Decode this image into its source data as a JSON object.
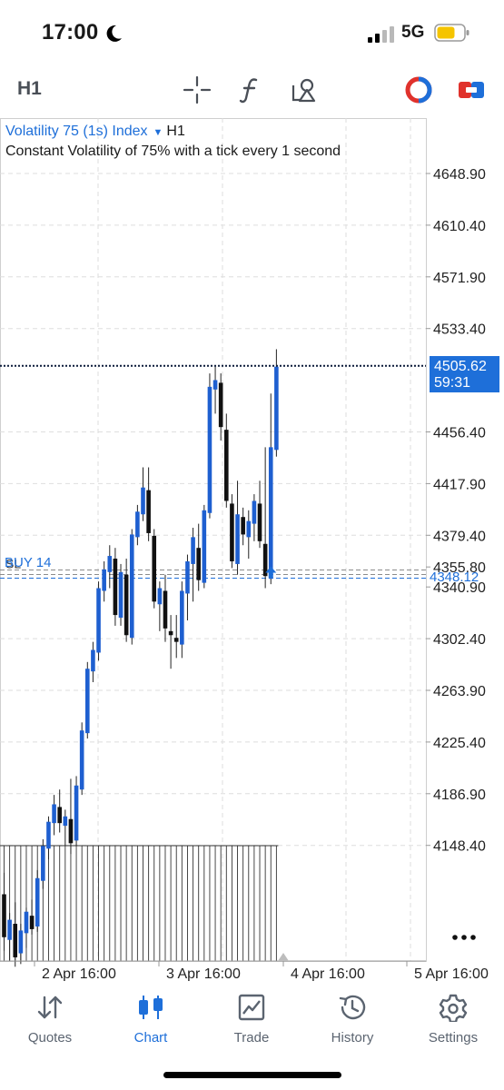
{
  "status_bar": {
    "time": "17:00",
    "network": "5G",
    "battery_color": "#f5c400"
  },
  "toolbar": {
    "timeframe": "H1",
    "icons": [
      "crosshair-icon",
      "indicators-icon",
      "objects-icon",
      "one-click-trading-icon",
      "trade-icon"
    ]
  },
  "chart": {
    "symbol": "Volatility 75 (1s) Index",
    "timeframe": "H1",
    "description": "Constant Volatility of 75% with a tick every 1 second",
    "current_price": "4505.62",
    "countdown": "59:31",
    "order_label": "BUY 14",
    "order_price": "4348.12",
    "sl_label": "SL",
    "accent_color": "#1e6fd9",
    "bull_color": "#1e5fd0",
    "bear_color": "#111111"
  },
  "chart_data": {
    "type": "candlestick",
    "price_levels": [
      "4648.90",
      "4610.40",
      "4571.90",
      "4533.40",
      "4456.40",
      "4417.90",
      "4379.40",
      "4355.80",
      "4340.90",
      "4302.40",
      "4263.90",
      "4225.40",
      "4186.90",
      "4148.40"
    ],
    "x_labels": [
      "2 Apr 16:00",
      "3 Apr 16:00",
      "4 Apr 16:00",
      "5 Apr 16:00"
    ],
    "current_price": 4505.62,
    "entry_price": 4348.12,
    "candles": [
      {
        "o": 4112,
        "h": 4128,
        "l": 4070,
        "c": 4080
      },
      {
        "o": 4078,
        "h": 4098,
        "l": 4062,
        "c": 4093
      },
      {
        "o": 4090,
        "h": 4106,
        "l": 4058,
        "c": 4065
      },
      {
        "o": 4068,
        "h": 4090,
        "l": 4060,
        "c": 4085
      },
      {
        "o": 4083,
        "h": 4102,
        "l": 4072,
        "c": 4099
      },
      {
        "o": 4096,
        "h": 4108,
        "l": 4082,
        "c": 4086
      },
      {
        "o": 4088,
        "h": 4130,
        "l": 4084,
        "c": 4124
      },
      {
        "o": 4122,
        "h": 4153,
        "l": 4116,
        "c": 4148
      },
      {
        "o": 4146,
        "h": 4170,
        "l": 4138,
        "c": 4166
      },
      {
        "o": 4165,
        "h": 4186,
        "l": 4156,
        "c": 4179
      },
      {
        "o": 4177,
        "h": 4190,
        "l": 4158,
        "c": 4165
      },
      {
        "o": 4163,
        "h": 4175,
        "l": 4148,
        "c": 4170
      },
      {
        "o": 4168,
        "h": 4198,
        "l": 4142,
        "c": 4150
      },
      {
        "o": 4152,
        "h": 4200,
        "l": 4148,
        "c": 4193
      },
      {
        "o": 4190,
        "h": 4240,
        "l": 4186,
        "c": 4234
      },
      {
        "o": 4232,
        "h": 4285,
        "l": 4228,
        "c": 4280
      },
      {
        "o": 4278,
        "h": 4300,
        "l": 4270,
        "c": 4294
      },
      {
        "o": 4292,
        "h": 4345,
        "l": 4286,
        "c": 4340
      },
      {
        "o": 4338,
        "h": 4360,
        "l": 4330,
        "c": 4354
      },
      {
        "o": 4352,
        "h": 4372,
        "l": 4340,
        "c": 4364
      },
      {
        "o": 4362,
        "h": 4370,
        "l": 4312,
        "c": 4320
      },
      {
        "o": 4318,
        "h": 4358,
        "l": 4312,
        "c": 4352
      },
      {
        "o": 4350,
        "h": 4362,
        "l": 4300,
        "c": 4305
      },
      {
        "o": 4303,
        "h": 4384,
        "l": 4298,
        "c": 4380
      },
      {
        "o": 4378,
        "h": 4402,
        "l": 4372,
        "c": 4397
      },
      {
        "o": 4395,
        "h": 4430,
        "l": 4390,
        "c": 4415
      },
      {
        "o": 4413,
        "h": 4430,
        "l": 4375,
        "c": 4381
      },
      {
        "o": 4379,
        "h": 4384,
        "l": 4325,
        "c": 4330
      },
      {
        "o": 4328,
        "h": 4345,
        "l": 4308,
        "c": 4340
      },
      {
        "o": 4338,
        "h": 4350,
        "l": 4300,
        "c": 4310
      },
      {
        "o": 4308,
        "h": 4320,
        "l": 4280,
        "c": 4305
      },
      {
        "o": 4303,
        "h": 4320,
        "l": 4288,
        "c": 4300
      },
      {
        "o": 4298,
        "h": 4345,
        "l": 4288,
        "c": 4338
      },
      {
        "o": 4336,
        "h": 4365,
        "l": 4316,
        "c": 4360
      },
      {
        "o": 4358,
        "h": 4385,
        "l": 4330,
        "c": 4378
      },
      {
        "o": 4370,
        "h": 4388,
        "l": 4338,
        "c": 4346
      },
      {
        "o": 4344,
        "h": 4402,
        "l": 4340,
        "c": 4398
      },
      {
        "o": 4396,
        "h": 4500,
        "l": 4392,
        "c": 4490
      },
      {
        "o": 4488,
        "h": 4505,
        "l": 4470,
        "c": 4495
      },
      {
        "o": 4493,
        "h": 4500,
        "l": 4450,
        "c": 4460
      },
      {
        "o": 4458,
        "h": 4470,
        "l": 4400,
        "c": 4405
      },
      {
        "o": 4403,
        "h": 4410,
        "l": 4355,
        "c": 4360
      },
      {
        "o": 4358,
        "h": 4420,
        "l": 4350,
        "c": 4395
      },
      {
        "o": 4393,
        "h": 4400,
        "l": 4372,
        "c": 4380
      },
      {
        "o": 4378,
        "h": 4398,
        "l": 4362,
        "c": 4390
      },
      {
        "o": 4388,
        "h": 4410,
        "l": 4375,
        "c": 4405
      },
      {
        "o": 4403,
        "h": 4420,
        "l": 4370,
        "c": 4375
      },
      {
        "o": 4373,
        "h": 4445,
        "l": 4340,
        "c": 4349
      },
      {
        "o": 4347,
        "h": 4485,
        "l": 4343,
        "c": 4445
      },
      {
        "o": 4443,
        "h": 4518,
        "l": 4438,
        "c": 4505
      }
    ]
  },
  "tabs": [
    {
      "id": "quotes",
      "label": "Quotes",
      "icon": "quotes-icon"
    },
    {
      "id": "chart",
      "label": "Chart",
      "icon": "chart-icon",
      "active": true
    },
    {
      "id": "trade",
      "label": "Trade",
      "icon": "trade-tab-icon"
    },
    {
      "id": "history",
      "label": "History",
      "icon": "history-icon"
    },
    {
      "id": "settings",
      "label": "Settings",
      "icon": "settings-icon"
    }
  ]
}
